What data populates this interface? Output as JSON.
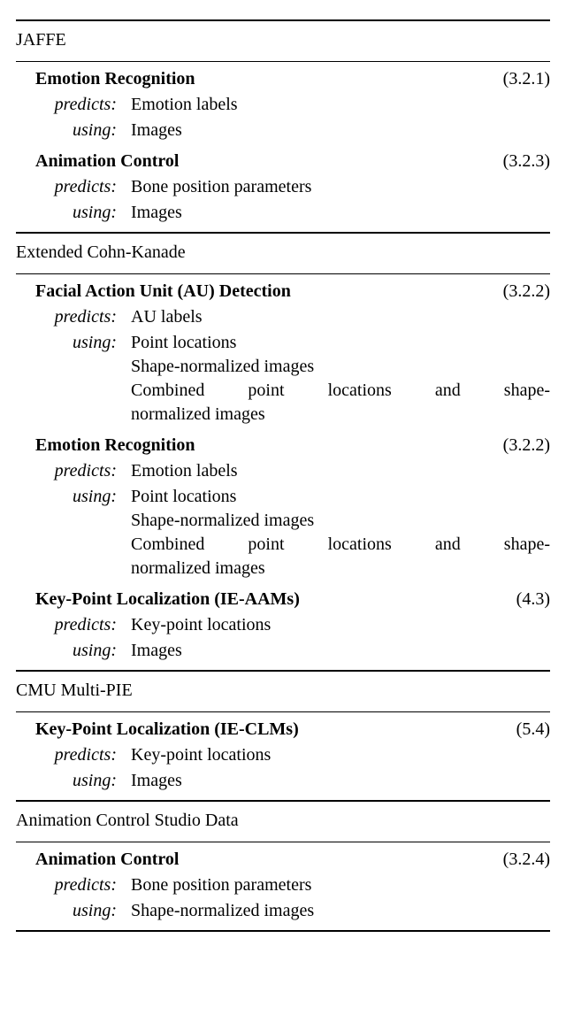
{
  "sections": {
    "jaffe": {
      "title": "JAFFE",
      "tasks": {
        "emotion": {
          "name": "Emotion Recognition",
          "ref": "(3.2.1)",
          "predicts": "Emotion labels",
          "using1": "Images"
        },
        "anim": {
          "name": "Animation Control",
          "ref": "(3.2.3)",
          "predicts": "Bone position parameters",
          "using1": "Images"
        }
      }
    },
    "eck": {
      "title": "Extended Cohn-Kanade",
      "tasks": {
        "au": {
          "name": "Facial Action Unit (AU) Detection",
          "ref": "(3.2.2)",
          "predicts": "AU labels",
          "using1": "Point locations",
          "using2": "Shape-normalized images",
          "using3a": "Combined point locations and shape-",
          "using3b": "normalized images"
        },
        "emotion": {
          "name": "Emotion Recognition",
          "ref": "(3.2.2)",
          "predicts": "Emotion labels",
          "using1": "Point locations",
          "using2": "Shape-normalized images",
          "using3a": "Combined point locations and shape-",
          "using3b": "normalized images"
        },
        "kpt": {
          "name": "Key-Point Localization (IE-AAMs)",
          "ref": "(4.3)",
          "predicts": "Key-point locations",
          "using1": "Images"
        }
      }
    },
    "mpie": {
      "title": "CMU Multi-PIE",
      "tasks": {
        "kpt": {
          "name": "Key-Point Localization (IE-CLMs)",
          "ref": "(5.4)",
          "predicts": "Key-point locations",
          "using1": "Images"
        }
      }
    },
    "acs": {
      "title": "Animation Control Studio Data",
      "tasks": {
        "anim": {
          "name": "Animation Control",
          "ref": "(3.2.4)",
          "predicts": "Bone position parameters",
          "using1": "Shape-normalized images"
        }
      }
    }
  },
  "labels": {
    "predicts": "predicts:",
    "using": "using:"
  }
}
